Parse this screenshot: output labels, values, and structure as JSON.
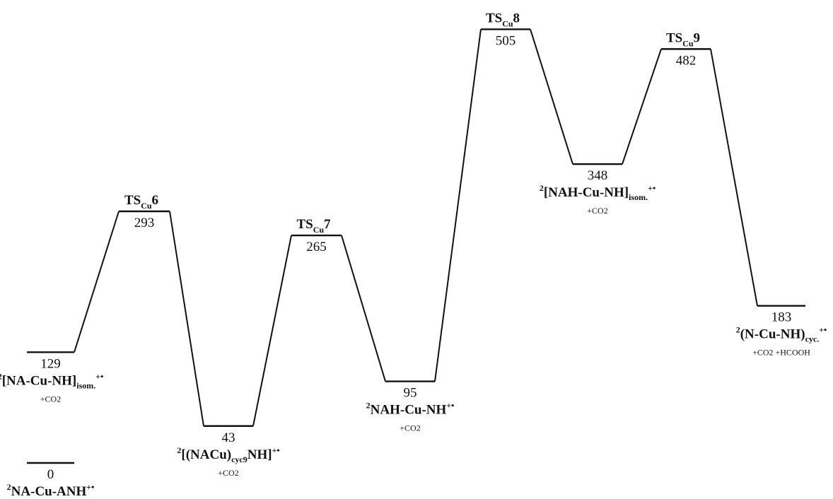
{
  "chart_data": {
    "type": "energy-profile",
    "levels": [
      {
        "id": "r0",
        "value": 0,
        "label": "NA-Cu-ANH",
        "prefix": "2",
        "suffix": "+•",
        "note": ""
      },
      {
        "id": "i1",
        "value": 129,
        "label": "[NA-Cu-NH]",
        "sublabel": "isom.",
        "prefix": "2",
        "suffix": "+•",
        "note": "+CO2"
      },
      {
        "id": "ts6",
        "value": 293,
        "label": "TS",
        "sublabel": "Cu",
        "index": "6"
      },
      {
        "id": "i2",
        "value": 43,
        "label": "[(NACu)",
        "sublabel": "cyc9",
        "label2": "NH]",
        "prefix": "2",
        "suffix": "+•",
        "note": "+CO2"
      },
      {
        "id": "ts7",
        "value": 265,
        "label": "TS",
        "sublabel": "Cu",
        "index": "7"
      },
      {
        "id": "i3",
        "value": 95,
        "label": "NAH-Cu-NH",
        "prefix": "2",
        "suffix": "+•",
        "note": "+CO2"
      },
      {
        "id": "ts8",
        "value": 505,
        "label": "TS",
        "sublabel": "Cu",
        "index": "8"
      },
      {
        "id": "i4",
        "value": 348,
        "label": "[NAH-Cu-NH]",
        "sublabel": "isom.",
        "prefix": "2",
        "suffix": "+•",
        "note": "+CO2"
      },
      {
        "id": "ts9",
        "value": 482,
        "label": "TS",
        "sublabel": "Cu",
        "index": "9"
      },
      {
        "id": "p1",
        "value": 183,
        "label": "(N-Cu-NH)",
        "sublabel": "cyc.",
        "prefix": "2",
        "suffix": "+•",
        "note": "+CO2  +HCOOH"
      }
    ],
    "connections": [
      [
        "i1",
        "ts6"
      ],
      [
        "ts6",
        "i2"
      ],
      [
        "i2",
        "ts7"
      ],
      [
        "ts7",
        "i3"
      ],
      [
        "i3",
        "ts8"
      ],
      [
        "ts8",
        "i4"
      ],
      [
        "i4",
        "ts9"
      ],
      [
        "ts9",
        "p1"
      ]
    ]
  }
}
